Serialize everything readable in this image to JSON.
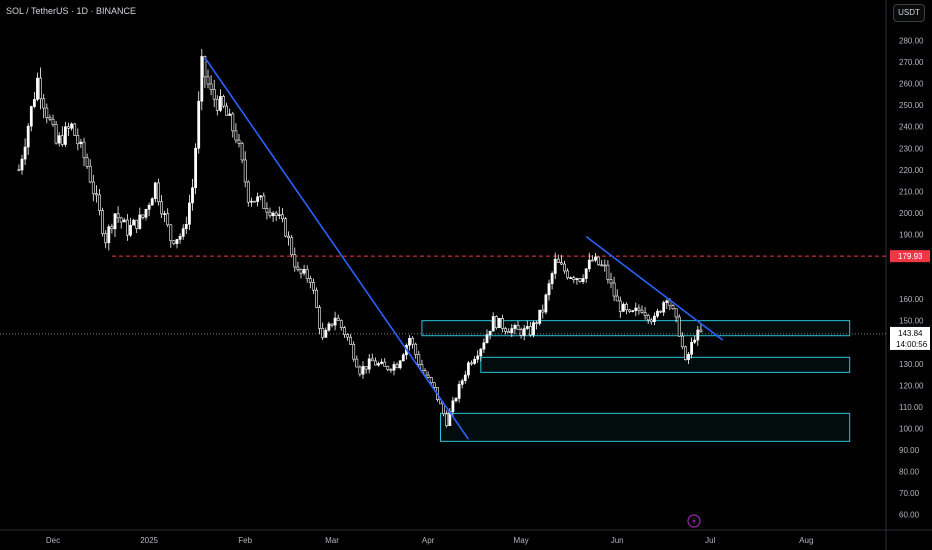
{
  "symbol_title": "SOL / TetherUS · 1D · BINANCE",
  "currency_button": "USDT",
  "colors": {
    "background": "#000000",
    "candle": "#ffffff",
    "trendline": "#2962ff",
    "zone_border": "#26c6da",
    "resistance": "#f23645",
    "resistance_label_bg": "#f23645",
    "price_label_bg": "#ffffff",
    "axis_text": "#b2b5be"
  },
  "chart_data": {
    "type": "candlestick",
    "x_ticks": [
      "Dec",
      "2025",
      "Feb",
      "Mar",
      "Apr",
      "May",
      "Jun",
      "Jul",
      "Aug"
    ],
    "y_ticks": [
      "280.00",
      "270.00",
      "260.00",
      "250.00",
      "240.00",
      "230.00",
      "220.00",
      "210.00",
      "200.00",
      "190.00",
      "160.00",
      "150.00",
      "130.00",
      "120.00",
      "110.00",
      "100.00",
      "90.00",
      "80.00",
      "70.00",
      "60.00"
    ],
    "y_range": [
      55,
      290
    ],
    "resistance_price": "179.93",
    "last_price": "143.84",
    "countdown": "14:00:56",
    "zones": [
      {
        "from_date": "Mar 30",
        "to_date": "Aug 15",
        "top": 150,
        "bottom": 143
      },
      {
        "from_date": "Apr 18",
        "to_date": "Aug 15",
        "top": 133,
        "bottom": 126
      },
      {
        "from_date": "Apr 5",
        "to_date": "Aug 15",
        "top": 107,
        "bottom": 94
      }
    ],
    "trendlines": [
      {
        "from": [
          "Jan 19",
          272
        ],
        "to": [
          "Apr 14",
          95
        ]
      },
      {
        "from": [
          "May 22",
          189
        ],
        "to": [
          "Jul 5",
          141
        ]
      }
    ],
    "price_path": [
      [
        "Nov 20",
        220
      ],
      [
        "Nov 26",
        262
      ],
      [
        "Dec 2",
        232
      ],
      [
        "Dec 7",
        240
      ],
      [
        "Dec 12",
        222
      ],
      [
        "Dec 18",
        188
      ],
      [
        "Dec 21",
        200
      ],
      [
        "Dec 25",
        192
      ],
      [
        "Dec 30",
        198
      ],
      [
        "Jan 3",
        213
      ],
      [
        "Jan 8",
        188
      ],
      [
        "Jan 12",
        190
      ],
      [
        "Jan 15",
        212
      ],
      [
        "Jan 18",
        268
      ],
      [
        "Jan 21",
        255
      ],
      [
        "Jan 25",
        248
      ],
      [
        "Jan 29",
        236
      ],
      [
        "Feb 2",
        208
      ],
      [
        "Feb 6",
        205
      ],
      [
        "Feb 10",
        201
      ],
      [
        "Feb 14",
        192
      ],
      [
        "Feb 18",
        172
      ],
      [
        "Feb 22",
        170
      ],
      [
        "Feb 26",
        141
      ],
      [
        "Mar 2",
        152
      ],
      [
        "Mar 6",
        142
      ],
      [
        "Mar 10",
        127
      ],
      [
        "Mar 14",
        131
      ],
      [
        "Mar 18",
        128
      ],
      [
        "Mar 22",
        130
      ],
      [
        "Mar 26",
        142
      ],
      [
        "Mar 30",
        127
      ],
      [
        "Apr 3",
        118
      ],
      [
        "Apr 7",
        103
      ],
      [
        "Apr 10",
        115
      ],
      [
        "Apr 14",
        130
      ],
      [
        "Apr 18",
        138
      ],
      [
        "Apr 22",
        150
      ],
      [
        "Apr 26",
        147
      ],
      [
        "Apr 30",
        145
      ],
      [
        "May 4",
        145
      ],
      [
        "May 8",
        155
      ],
      [
        "May 12",
        177
      ],
      [
        "May 16",
        172
      ],
      [
        "May 20",
        170
      ],
      [
        "May 24",
        178
      ],
      [
        "May 28",
        174
      ],
      [
        "Jun 1",
        158
      ],
      [
        "Jun 5",
        152
      ],
      [
        "Jun 9",
        156
      ],
      [
        "Jun 13",
        150
      ],
      [
        "Jun 17",
        162
      ],
      [
        "Jun 21",
        145
      ],
      [
        "Jun 23",
        130
      ],
      [
        "Jun 26",
        143
      ],
      [
        "Jun 28",
        144
      ]
    ]
  }
}
